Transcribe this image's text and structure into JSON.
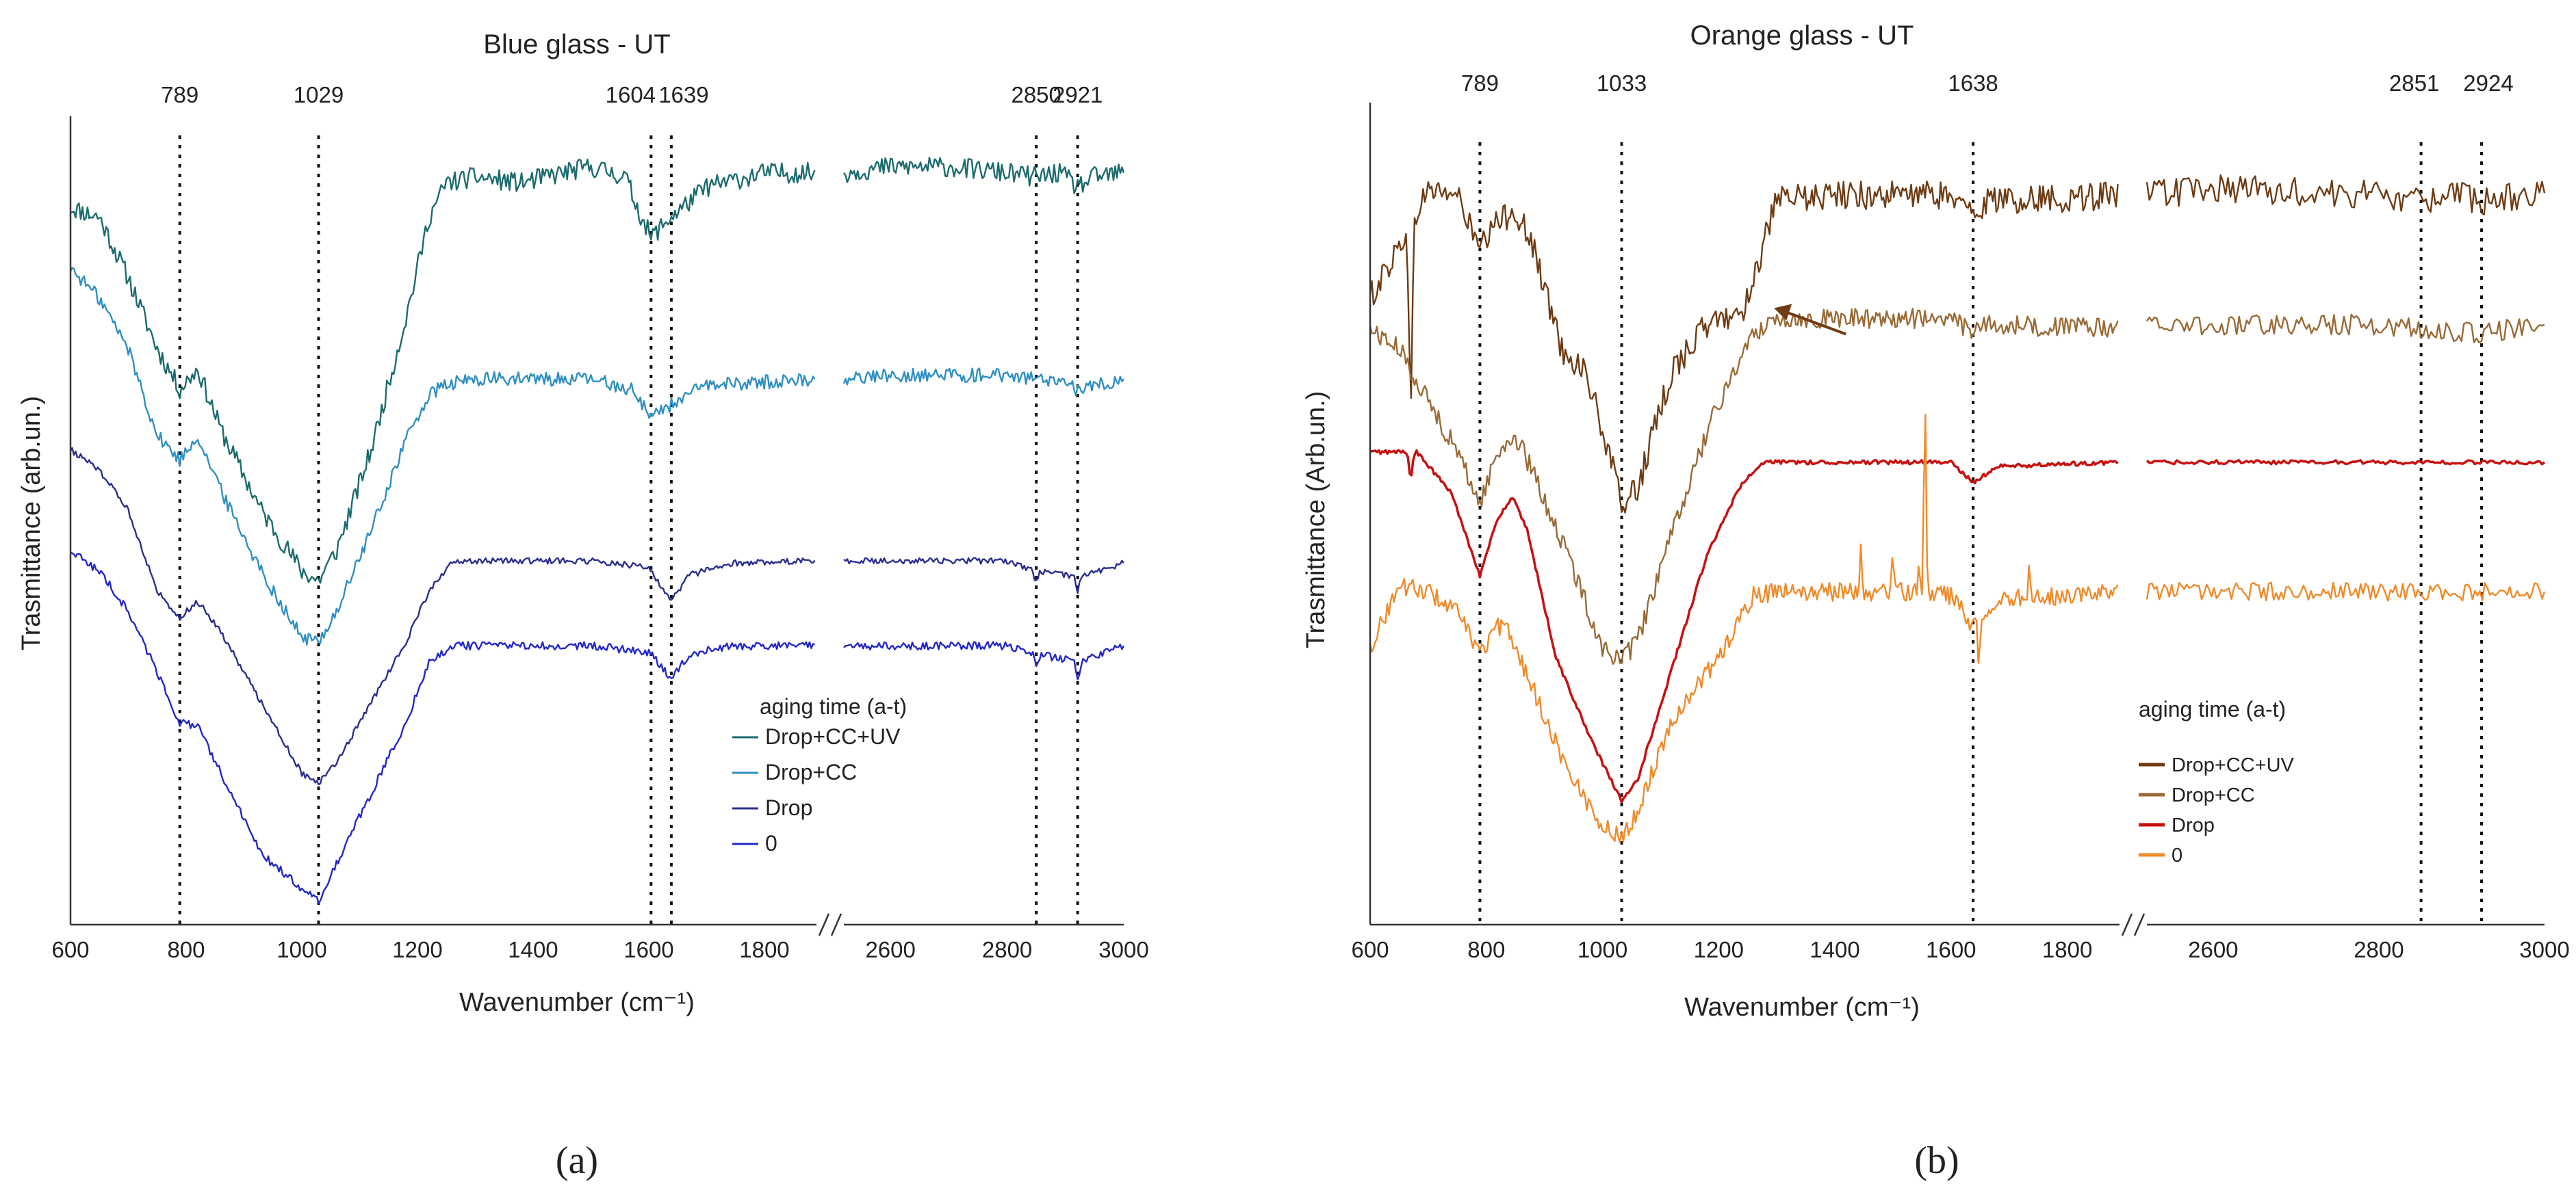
{
  "colors": {
    "blue_ccuv": "#1c6b6e",
    "blue_cc": "#2f8fc3",
    "blue_drop": "#2a2f8f",
    "blue_zero": "#2428c8",
    "orange_ccuv": "#6e3b12",
    "orange_cc": "#9a6a35",
    "orange_drop": "#c81010",
    "orange_zero": "#f08a2a"
  },
  "chart_data": [
    {
      "type": "line",
      "panel": "a",
      "panel_label": "(a)",
      "title": "Blue glass - UT",
      "xlabel": "Wavenumber (cm⁻¹)",
      "ylabel": "Trasmittance (arb.un.)",
      "x_ticks": [
        "600",
        "800",
        "1000",
        "1200",
        "1400",
        "1600",
        "1800",
        "2600",
        "2800",
        "3000"
      ],
      "x_segments": [
        [
          600,
          1890
        ],
        [
          2520,
          3000
        ]
      ],
      "axis_break": true,
      "y_ticks": false,
      "peak_lines": [
        {
          "x": 789,
          "label": "789"
        },
        {
          "x": 1029,
          "label": "1029"
        },
        {
          "x": 1604,
          "label": "1604"
        },
        {
          "x": 1639,
          "label": "1639"
        },
        {
          "x": 2850,
          "label": "2850"
        },
        {
          "x": 2921,
          "label": "2921"
        }
      ],
      "legend_title": "aging time (a-t)",
      "series": [
        {
          "name": "Drop+CC+UV",
          "color_key": "blue_ccuv",
          "offset": 3.0,
          "sharp_dips": [],
          "noise": 0.05,
          "points": [
            [
              600,
              3.75
            ],
            [
              650,
              3.7
            ],
            [
              700,
              3.4
            ],
            [
              750,
              3.05
            ],
            [
              789,
              2.85
            ],
            [
              820,
              2.95
            ],
            [
              860,
              2.65
            ],
            [
              930,
              2.25
            ],
            [
              1000,
              1.95
            ],
            [
              1029,
              1.9
            ],
            [
              1060,
              2.05
            ],
            [
              1120,
              2.55
            ],
            [
              1180,
              3.2
            ],
            [
              1220,
              3.7
            ],
            [
              1250,
              3.87
            ],
            [
              1300,
              3.9
            ],
            [
              1380,
              3.87
            ],
            [
              1450,
              3.92
            ],
            [
              1500,
              3.95
            ],
            [
              1560,
              3.9
            ],
            [
              1580,
              3.75
            ],
            [
              1604,
              3.6
            ],
            [
              1630,
              3.68
            ],
            [
              1700,
              3.85
            ],
            [
              1800,
              3.92
            ],
            [
              1890,
              3.92
            ],
            [
              2520,
              3.92
            ],
            [
              2600,
              3.95
            ],
            [
              2700,
              3.95
            ],
            [
              2800,
              3.92
            ],
            [
              2850,
              3.9
            ],
            [
              2890,
              3.92
            ],
            [
              2921,
              3.85
            ],
            [
              2950,
              3.9
            ],
            [
              3000,
              3.92
            ]
          ]
        },
        {
          "name": "Drop+CC",
          "color_key": "blue_cc",
          "offset": 2.0,
          "sharp_dips": [],
          "noise": 0.035,
          "points": [
            [
              600,
              3.45
            ],
            [
              650,
              3.3
            ],
            [
              700,
              3.05
            ],
            [
              750,
              2.62
            ],
            [
              789,
              2.5
            ],
            [
              820,
              2.62
            ],
            [
              860,
              2.35
            ],
            [
              930,
              1.95
            ],
            [
              1000,
              1.62
            ],
            [
              1029,
              1.6
            ],
            [
              1060,
              1.75
            ],
            [
              1120,
              2.15
            ],
            [
              1180,
              2.6
            ],
            [
              1220,
              2.82
            ],
            [
              1250,
              2.87
            ],
            [
              1300,
              2.9
            ],
            [
              1500,
              2.9
            ],
            [
              1570,
              2.85
            ],
            [
              1604,
              2.72
            ],
            [
              1630,
              2.76
            ],
            [
              1700,
              2.87
            ],
            [
              1890,
              2.9
            ],
            [
              2520,
              2.9
            ],
            [
              2600,
              2.92
            ],
            [
              2800,
              2.92
            ],
            [
              2850,
              2.9
            ],
            [
              2921,
              2.85
            ],
            [
              3000,
              2.9
            ]
          ]
        },
        {
          "name": "Drop",
          "color_key": "blue_drop",
          "offset": 1.0,
          "sharp_dips": [
            [
              2850,
              0.06
            ],
            [
              2921,
              0.07
            ]
          ],
          "noise": 0.015,
          "points": [
            [
              600,
              2.55
            ],
            [
              650,
              2.45
            ],
            [
              700,
              2.25
            ],
            [
              750,
              1.85
            ],
            [
              789,
              1.72
            ],
            [
              820,
              1.8
            ],
            [
              860,
              1.65
            ],
            [
              930,
              1.3
            ],
            [
              1000,
              0.95
            ],
            [
              1029,
              0.9
            ],
            [
              1060,
              1.0
            ],
            [
              1120,
              1.3
            ],
            [
              1180,
              1.6
            ],
            [
              1220,
              1.85
            ],
            [
              1260,
              1.99
            ],
            [
              1300,
              2.0
            ],
            [
              1500,
              2.0
            ],
            [
              1600,
              1.97
            ],
            [
              1625,
              1.85
            ],
            [
              1639,
              1.8
            ],
            [
              1670,
              1.93
            ],
            [
              1750,
              1.99
            ],
            [
              1890,
              2.0
            ],
            [
              2520,
              2.0
            ],
            [
              2800,
              2.0
            ],
            [
              2850,
              1.95
            ],
            [
              2921,
              1.92
            ],
            [
              3000,
              1.99
            ]
          ]
        },
        {
          "name": "0",
          "color_key": "blue_zero",
          "offset": 0.0,
          "sharp_dips": [
            [
              2850,
              0.06
            ],
            [
              2921,
              0.08
            ]
          ],
          "noise": 0.02,
          "points": [
            [
              600,
              2.05
            ],
            [
              650,
              1.95
            ],
            [
              700,
              1.75
            ],
            [
              750,
              1.45
            ],
            [
              789,
              1.2
            ],
            [
              820,
              1.18
            ],
            [
              860,
              0.95
            ],
            [
              930,
              0.55
            ],
            [
              1000,
              0.38
            ],
            [
              1029,
              0.32
            ],
            [
              1060,
              0.5
            ],
            [
              1120,
              0.85
            ],
            [
              1180,
              1.2
            ],
            [
              1220,
              1.5
            ],
            [
              1260,
              1.58
            ],
            [
              1300,
              1.58
            ],
            [
              1500,
              1.58
            ],
            [
              1600,
              1.55
            ],
            [
              1625,
              1.47
            ],
            [
              1639,
              1.42
            ],
            [
              1670,
              1.54
            ],
            [
              1750,
              1.58
            ],
            [
              1890,
              1.58
            ],
            [
              2520,
              1.58
            ],
            [
              2800,
              1.58
            ],
            [
              2850,
              1.54
            ],
            [
              2921,
              1.5
            ],
            [
              3000,
              1.58
            ]
          ]
        }
      ]
    },
    {
      "type": "line",
      "panel": "b",
      "panel_label": "(b)",
      "title": "Orange glass - UT",
      "xlabel": "Wavenumber (cm⁻¹)",
      "ylabel": "Trasmittance (Arb.un.)",
      "x_ticks": [
        "600",
        "800",
        "1000",
        "1200",
        "1400",
        "1600",
        "1800",
        "2600",
        "2800",
        "3000"
      ],
      "x_segments": [
        [
          600,
          1890
        ],
        [
          2520,
          3000
        ]
      ],
      "axis_break": true,
      "y_ticks": false,
      "peak_lines": [
        {
          "x": 789,
          "label": "789"
        },
        {
          "x": 1033,
          "label": "1033"
        },
        {
          "x": 1638,
          "label": "1638"
        },
        {
          "x": 2851,
          "label": "2851"
        },
        {
          "x": 2924,
          "label": "2924"
        }
      ],
      "legend_title": "aging time (a-t)",
      "arrow_annotation": {
        "x": 1260,
        "y": 3.3
      },
      "series": [
        {
          "name": "Drop+CC+UV",
          "color_key": "orange_ccuv",
          "offset": 3.0,
          "sharp_dips": [
            [
              670,
              0.9
            ]
          ],
          "noise": 0.07,
          "points": [
            [
              600,
              3.35
            ],
            [
              650,
              3.6
            ],
            [
              700,
              3.88
            ],
            [
              750,
              3.85
            ],
            [
              789,
              3.58
            ],
            [
              820,
              3.72
            ],
            [
              850,
              3.78
            ],
            [
              880,
              3.6
            ],
            [
              930,
              3.1
            ],
            [
              970,
              3.0
            ],
            [
              1000,
              2.7
            ],
            [
              1033,
              2.35
            ],
            [
              1060,
              2.42
            ],
            [
              1120,
              3.0
            ],
            [
              1180,
              3.22
            ],
            [
              1240,
              3.28
            ],
            [
              1260,
              3.45
            ],
            [
              1300,
              3.82
            ],
            [
              1400,
              3.85
            ],
            [
              1600,
              3.85
            ],
            [
              1638,
              3.75
            ],
            [
              1660,
              3.82
            ],
            [
              1890,
              3.85
            ],
            [
              2520,
              3.85
            ],
            [
              2600,
              3.88
            ],
            [
              2800,
              3.85
            ],
            [
              2851,
              3.82
            ],
            [
              2880,
              3.86
            ],
            [
              2924,
              3.82
            ],
            [
              3000,
              3.86
            ]
          ]
        },
        {
          "name": "Drop+CC",
          "color_key": "orange_cc",
          "offset": 2.0,
          "sharp_dips": [],
          "noise": 0.05,
          "points": [
            [
              600,
              3.2
            ],
            [
              650,
              3.1
            ],
            [
              700,
              2.85
            ],
            [
              750,
              2.6
            ],
            [
              789,
              2.35
            ],
            [
              820,
              2.6
            ],
            [
              850,
              2.68
            ],
            [
              880,
              2.5
            ],
            [
              940,
              2.1
            ],
            [
              1000,
              1.65
            ],
            [
              1033,
              1.58
            ],
            [
              1060,
              1.68
            ],
            [
              1120,
              2.2
            ],
            [
              1180,
              2.7
            ],
            [
              1240,
              3.08
            ],
            [
              1270,
              3.2
            ],
            [
              1300,
              3.25
            ],
            [
              1600,
              3.25
            ],
            [
              1638,
              3.18
            ],
            [
              1660,
              3.22
            ],
            [
              1890,
              3.2
            ],
            [
              2520,
              3.22
            ],
            [
              2800,
              3.22
            ],
            [
              2851,
              3.2
            ],
            [
              2924,
              3.18
            ],
            [
              3000,
              3.22
            ]
          ]
        },
        {
          "name": "Drop",
          "color_key": "orange_drop",
          "offset": 1.0,
          "sharp_dips": [
            [
              670,
              0.12
            ]
          ],
          "noise": 0.01,
          "points": [
            [
              600,
              2.6
            ],
            [
              680,
              2.6
            ],
            [
              740,
              2.4
            ],
            [
              789,
              2.0
            ],
            [
              820,
              2.28
            ],
            [
              845,
              2.38
            ],
            [
              870,
              2.22
            ],
            [
              920,
              1.6
            ],
            [
              980,
              1.2
            ],
            [
              1033,
              0.9
            ],
            [
              1060,
              1.0
            ],
            [
              1120,
              1.55
            ],
            [
              1180,
              2.1
            ],
            [
              1240,
              2.45
            ],
            [
              1280,
              2.55
            ],
            [
              1600,
              2.55
            ],
            [
              1638,
              2.45
            ],
            [
              1680,
              2.53
            ],
            [
              1890,
              2.55
            ],
            [
              2520,
              2.55
            ],
            [
              3000,
              2.55
            ]
          ]
        },
        {
          "name": "0",
          "color_key": "orange_zero",
          "offset": 0.0,
          "sharp_dips": [],
          "noise": 0.045,
          "spikes": [
            [
              1445,
              0.25
            ],
            [
              1500,
              0.2
            ],
            [
              1545,
              0.18
            ],
            [
              1555,
              0.95
            ],
            [
              1648,
              -0.25
            ],
            [
              1735,
              0.2
            ]
          ],
          "points": [
            [
              600,
              1.65
            ],
            [
              650,
              1.95
            ],
            [
              700,
              1.92
            ],
            [
              750,
              1.82
            ],
            [
              789,
              1.62
            ],
            [
              820,
              1.75
            ],
            [
              840,
              1.72
            ],
            [
              880,
              1.45
            ],
            [
              940,
              1.05
            ],
            [
              1000,
              0.78
            ],
            [
              1033,
              0.72
            ],
            [
              1060,
              0.85
            ],
            [
              1120,
              1.3
            ],
            [
              1200,
              1.6
            ],
            [
              1260,
              1.9
            ],
            [
              1300,
              1.92
            ],
            [
              1550,
              1.92
            ],
            [
              1600,
              1.9
            ],
            [
              1638,
              1.75
            ],
            [
              1680,
              1.88
            ],
            [
              1890,
              1.92
            ],
            [
              2520,
              1.92
            ],
            [
              3000,
              1.92
            ]
          ]
        }
      ]
    }
  ]
}
